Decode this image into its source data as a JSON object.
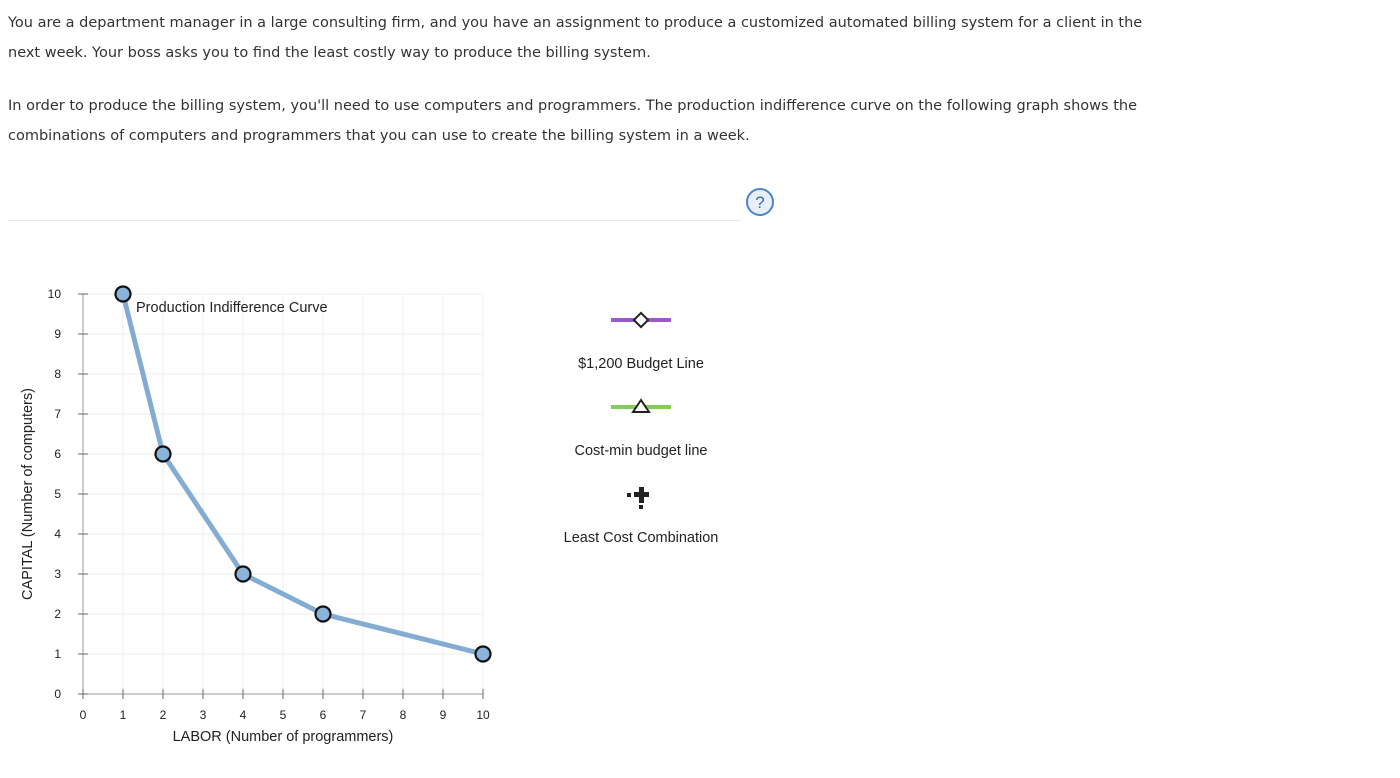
{
  "intro": {
    "paragraph1": "You are a department manager in a large consulting firm, and you have an assignment to produce a customized automated billing system for a client in the next week. Your boss asks you to find the least costly way to produce the billing system.",
    "paragraph2": "In order to produce the billing system, you'll need to use computers and programmers. The production indifference curve on the following graph shows the combinations of computers and programmers that you can use to create the billing system in a week."
  },
  "help_icon": {
    "symbol": "?",
    "icon": "question-circle-icon",
    "color": "#4a86c8"
  },
  "chart_data": {
    "type": "line",
    "xlabel": "LABOR (Number of programmers)",
    "ylabel": "CAPITAL (Number of computers)",
    "xlim": [
      0,
      10
    ],
    "ylim": [
      0,
      10
    ],
    "xticks": [
      0,
      1,
      2,
      3,
      4,
      5,
      6,
      7,
      8,
      9,
      10
    ],
    "yticks": [
      0,
      1,
      2,
      3,
      4,
      5,
      6,
      7,
      8,
      9,
      10
    ],
    "grid": true,
    "series": [
      {
        "name": "Production Indifference Curve",
        "color": "#84acd3",
        "marker_fill": "#8ab3dc",
        "points": [
          {
            "x": 1,
            "y": 10
          },
          {
            "x": 2,
            "y": 6
          },
          {
            "x": 4,
            "y": 3
          },
          {
            "x": 6,
            "y": 2
          },
          {
            "x": 10,
            "y": 1
          }
        ]
      }
    ]
  },
  "legend": {
    "items": [
      {
        "label": "$1,200 Budget Line",
        "color": "#9b59d0",
        "marker": "diamond"
      },
      {
        "label": "Cost-min budget line",
        "color": "#7ed05a",
        "marker": "triangle"
      },
      {
        "label": "Least Cost Combination",
        "color": "#222222",
        "marker": "plus"
      }
    ]
  }
}
